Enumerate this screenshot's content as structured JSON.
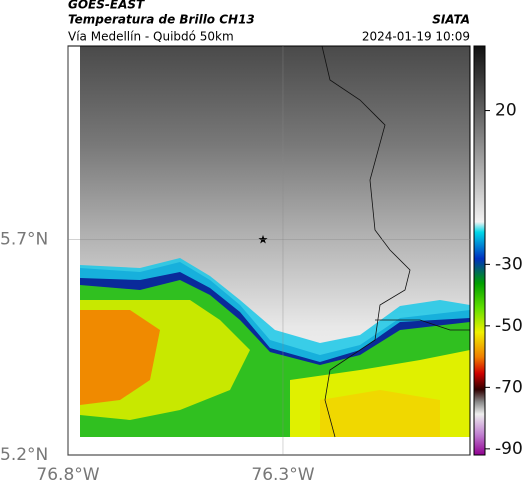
{
  "header": {
    "title": "GOES-EAST",
    "subtitle": "Temperatura de Brillo CH13",
    "region": "Vía Medellín - Quibdó 50km",
    "source": "SIATA",
    "timestamp": "2024-01-19 10:09"
  },
  "map": {
    "lat_range": [
      5.2,
      6.15
    ],
    "lon_range": [
      -76.8,
      -75.865
    ],
    "lat_ticks": [
      {
        "value": 5.7,
        "label": "5.7°N"
      },
      {
        "value": 5.2,
        "label": "5.2°N"
      }
    ],
    "lon_ticks": [
      {
        "value": -76.8,
        "label": "76.8°W"
      },
      {
        "value": -76.3,
        "label": "76.3°W"
      }
    ]
  },
  "colorbar": {
    "range": [
      -92,
      41
    ],
    "ticks": [
      20,
      -30,
      -50,
      -70,
      -90
    ]
  }
}
